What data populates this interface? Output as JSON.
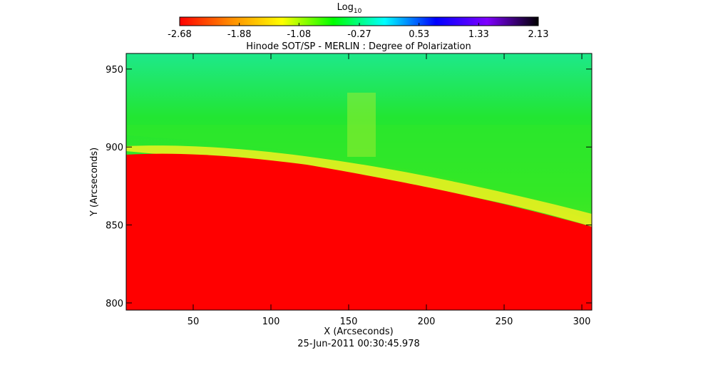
{
  "chart_data": {
    "type": "image",
    "title": "Hinode SOT/SP - MERLIN : Degree of Polarization",
    "subtitle": "25-Jun-2011 00:30:45.978",
    "x_label": "X (Arcseconds)",
    "y_label": "Y (Arcseconds)",
    "xlim": [
      6.9,
      306.4
    ],
    "xticks": [
      50,
      100,
      150,
      200,
      250,
      300
    ],
    "ylim": [
      795.4,
      960
    ],
    "yticks": [
      800,
      850,
      900,
      950
    ],
    "colorbar": {
      "label": "Log",
      "label_sub": "10",
      "lim": [
        -2.68,
        2.13
      ],
      "ticks": [
        -2.68,
        -1.88,
        -1.08,
        -0.27,
        0.53,
        1.33,
        2.13
      ],
      "colors": [
        "#ff0000",
        "#ff8c00",
        "#ffff00",
        "#00ff00",
        "#00ffff",
        "#0000ff",
        "#7f00ff",
        "#000000"
      ]
    }
  }
}
